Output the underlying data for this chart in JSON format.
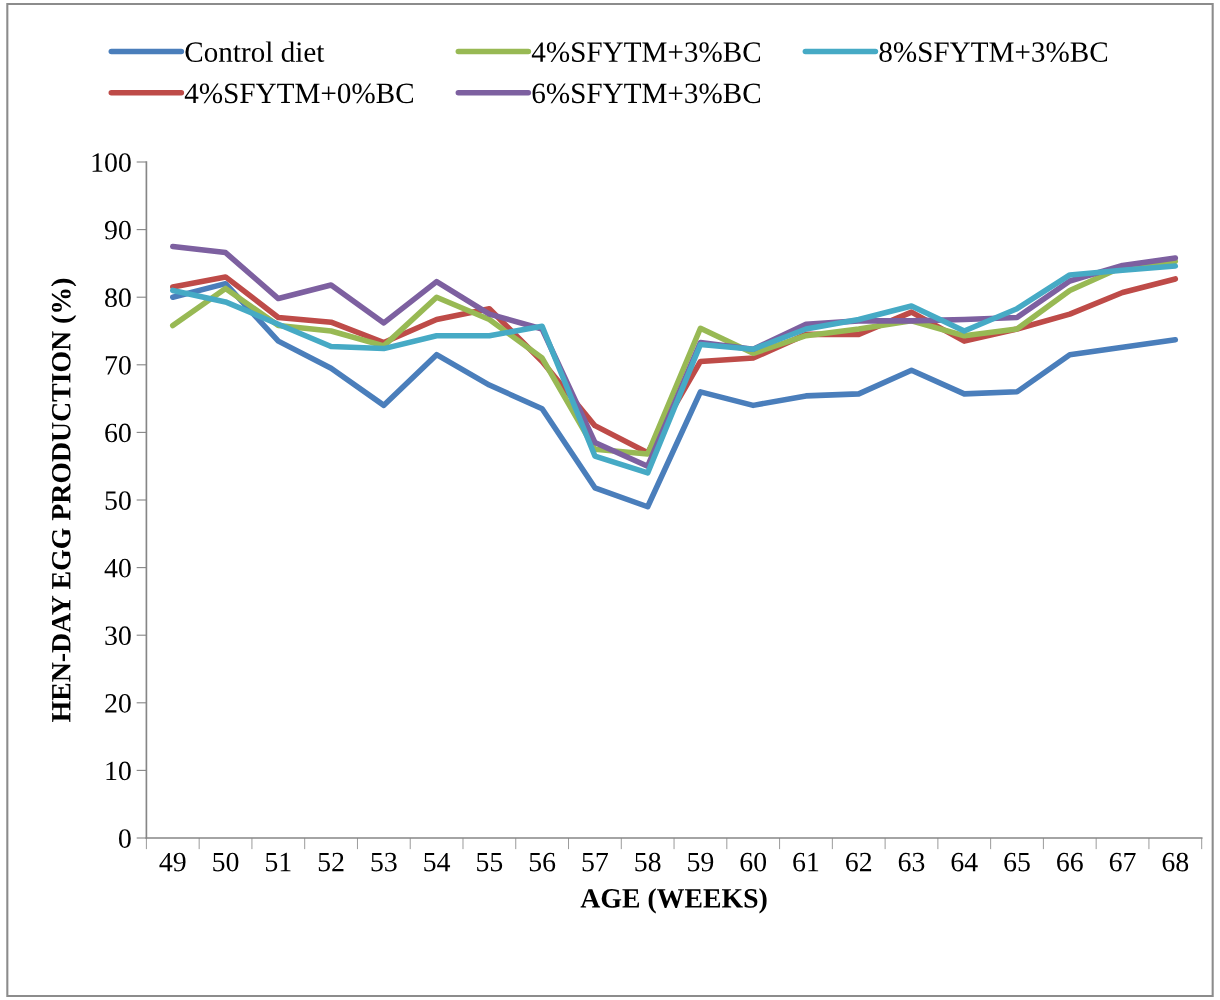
{
  "chart_data": {
    "type": "line",
    "xlabel": "AGE (WEEKS)",
    "ylabel": "HEN-DAY EGG PRODUCTION (%)",
    "categories": [
      "49",
      "50",
      "51",
      "52",
      "53",
      "54",
      "55",
      "56",
      "57",
      "58",
      "59",
      "60",
      "61",
      "62",
      "63",
      "64",
      "65",
      "66",
      "67",
      "68"
    ],
    "ylim": [
      0,
      100
    ],
    "yticks": [
      0,
      10,
      20,
      30,
      40,
      50,
      60,
      70,
      80,
      90,
      100
    ],
    "grid": false,
    "legend": "top",
    "marker": "none",
    "line_style": "solid",
    "series": [
      {
        "name": "Control diet",
        "color": "#4a7ebb",
        "values": [
          80,
          82,
          73.5,
          69.5,
          64,
          71.5,
          67,
          63.5,
          51.8,
          49,
          66,
          64,
          65.4,
          65.7,
          69.2,
          65.7,
          66,
          71.5,
          72.6,
          73.7
        ]
      },
      {
        "name": "4%SFYTM+0%BC",
        "color": "#be4b48",
        "values": [
          81.5,
          83,
          77,
          76.3,
          73.3,
          76.7,
          78.3,
          70.5,
          61,
          57,
          70.5,
          71,
          74.5,
          74.5,
          77.8,
          73.5,
          75.3,
          77.5,
          80.7,
          82.7
        ]
      },
      {
        "name": "4%SFYTM+3%BC",
        "color": "#98b954",
        "values": [
          75.8,
          81.3,
          75.8,
          75,
          72.8,
          80,
          76.7,
          71,
          57.5,
          56.8,
          75.4,
          71.7,
          74.3,
          75.3,
          76.5,
          74.3,
          75.3,
          81,
          84.5,
          85.3
        ]
      },
      {
        "name": "6%SFYTM+3%BC",
        "color": "#7d60a0",
        "values": [
          87.5,
          86.6,
          79.8,
          81.8,
          76.2,
          82.3,
          77.5,
          75.3,
          58.5,
          55,
          73.3,
          72.3,
          76,
          76.5,
          76.5,
          76.7,
          77,
          82.4,
          84.7,
          85.8
        ]
      },
      {
        "name": "8%SFYTM+3%BC",
        "color": "#46aac5",
        "values": [
          81,
          79.3,
          76,
          72.7,
          72.4,
          74.3,
          74.3,
          75.7,
          56.5,
          54,
          73,
          72.3,
          75.3,
          76.7,
          78.7,
          75,
          78.3,
          83.3,
          84,
          84.6
        ]
      }
    ]
  }
}
